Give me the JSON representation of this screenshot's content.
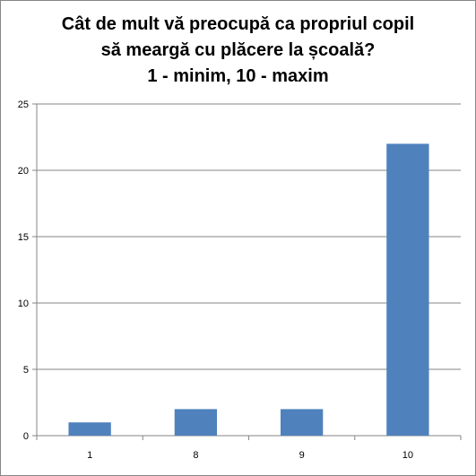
{
  "chart_data": {
    "type": "bar",
    "title_lines": [
      "Cât de mult vă preocupă ca propriul copil",
      "să meargă cu plăcere la școală?",
      "1 - minim, 10 - maxim"
    ],
    "categories": [
      "1",
      "8",
      "9",
      "10"
    ],
    "values": [
      1,
      2,
      2,
      22
    ],
    "ylim": [
      0,
      25
    ],
    "yticks": [
      0,
      5,
      10,
      15,
      20,
      25
    ],
    "grid": true,
    "legend": "none",
    "bar_color": "#4f81bd",
    "grid_color": "#868686",
    "axis_color": "#868686"
  }
}
